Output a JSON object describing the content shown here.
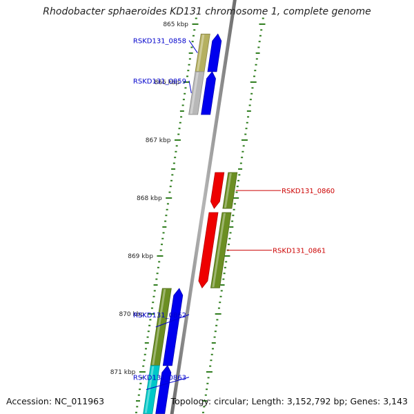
{
  "header": {
    "title": "Rhodobacter sphaeroides KD131 chromosome 1, complete genome"
  },
  "footer": {
    "accession": "Accession: NC_011963",
    "topology": "Topology: circular; Length: 3,152,792 bp; Genes: 3,143"
  },
  "colors": {
    "backbone": "#8c8c8c",
    "tick": "#2f7d1e",
    "olive_gene": "#6b8e23",
    "khaki_gene": "#b5b060",
    "grey_gene": "#b8b8b8",
    "blue_gene": "#0000ee",
    "red_gene": "#ee0000",
    "cyan_gene": "#00c8c8",
    "plus_label": "#0000cc",
    "minus_label": "#cc0000"
  },
  "scale": {
    "ticks": [
      {
        "label": "865 kbp",
        "kbp": 865
      },
      {
        "label": "866 kbp",
        "kbp": 866
      },
      {
        "label": "867 kbp",
        "kbp": 867
      },
      {
        "label": "868 kbp",
        "kbp": 868
      },
      {
        "label": "869 kbp",
        "kbp": 869
      },
      {
        "label": "870 kbp",
        "kbp": 870
      },
      {
        "label": "871 kbp",
        "kbp": 871
      }
    ]
  },
  "genes": [
    {
      "name": "RSKD131_0858",
      "strand": "+",
      "start_kbp": 865.17,
      "end_kbp": 865.82,
      "cog_color": "khaki"
    },
    {
      "name": "RSKD131_0859",
      "strand": "+",
      "start_kbp": 865.82,
      "end_kbp": 866.56,
      "cog_color": "grey"
    },
    {
      "name": "RSKD131_0860",
      "strand": "-",
      "start_kbp": 867.56,
      "end_kbp": 868.18,
      "cog_color": "olive"
    },
    {
      "name": "RSKD131_0861",
      "strand": "-",
      "start_kbp": 868.25,
      "end_kbp": 869.55,
      "cog_color": "olive"
    },
    {
      "name": "RSKD131_0862",
      "strand": "+",
      "start_kbp": 869.56,
      "end_kbp": 870.89,
      "cog_color": "olive"
    },
    {
      "name": "RSKD131_0863",
      "strand": "+",
      "start_kbp": 870.89,
      "end_kbp": 871.72,
      "cog_color": "cyan"
    }
  ]
}
